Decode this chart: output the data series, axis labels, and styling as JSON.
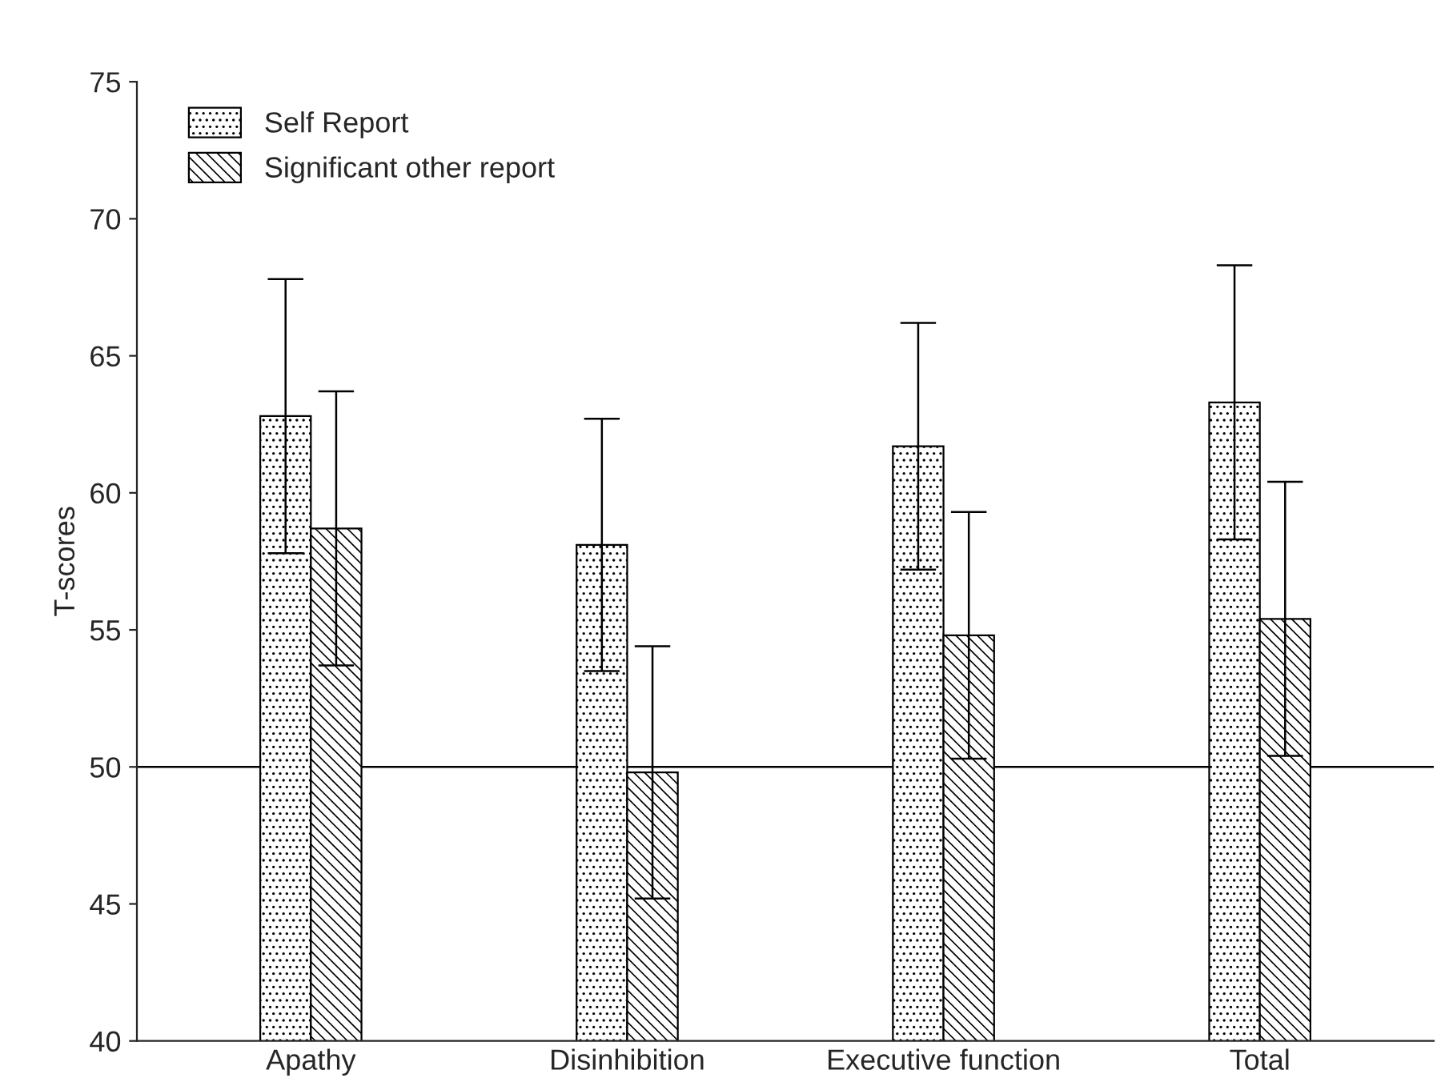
{
  "chart_data": {
    "type": "bar",
    "ylabel": "T-scores",
    "categories": [
      "Apathy",
      "Disinhibition",
      "Executive function",
      "Total"
    ],
    "series": [
      {
        "name": "Self Report",
        "color": "#000000",
        "values": [
          62.8,
          58.1,
          61.7,
          63.3
        ],
        "errors": [
          5.0,
          4.6,
          4.5,
          5.0
        ]
      },
      {
        "name": "Significant other report",
        "color": "#000000",
        "values": [
          58.7,
          49.8,
          54.8,
          55.4
        ],
        "errors": [
          5.0,
          4.6,
          4.5,
          5.0
        ]
      }
    ],
    "ylim": [
      40,
      75
    ],
    "yticks": [
      40,
      45,
      50,
      55,
      60,
      65,
      70,
      75
    ],
    "ref_lines": [
      {
        "axis": "y",
        "value": 50,
        "color": "#000000"
      }
    ],
    "grid": false,
    "legend": "top left"
  }
}
